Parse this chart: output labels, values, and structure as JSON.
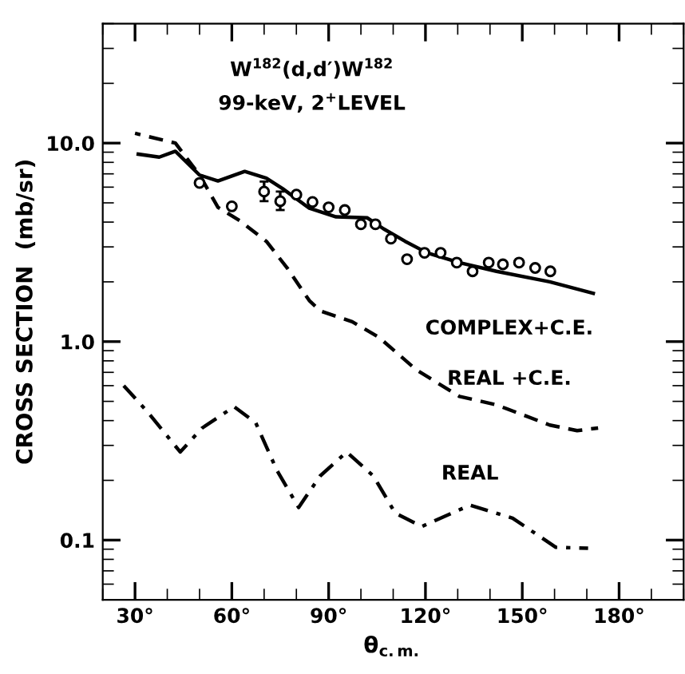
{
  "chart_data": {
    "type": "line",
    "xlabel": "θ$_{c.m.}$",
    "ylabel": "CROSS SECTION  (mb/sr)",
    "log": "y",
    "grid": false,
    "legend": false,
    "xlim": [
      20,
      200
    ],
    "xticks": [
      {
        "value": 30,
        "label": "30°"
      },
      {
        "value": 60,
        "label": "60°"
      },
      {
        "value": 90,
        "label": "90°"
      },
      {
        "value": 120,
        "label": "120°"
      },
      {
        "value": 150,
        "label": "150°"
      },
      {
        "value": 180,
        "label": "180°"
      }
    ],
    "ylim": [
      0.05,
      40
    ],
    "yticks": [
      {
        "value": 0.1,
        "label": "0.1"
      },
      {
        "value": 1,
        "label": "1.0"
      },
      {
        "value": 10,
        "label": "10.0"
      }
    ],
    "annotations": [
      "W$^{182}$(d,d′)W$^{182}$",
      "99-keV, 2$^{+}$LEVEL"
    ],
    "series": [
      {
        "name": "COMPLEX+C.E.",
        "line_style": "solid",
        "color": "#000000",
        "x": [
          31,
          37.5,
          42.5,
          50,
          55.7,
          64,
          70.7,
          75.7,
          84,
          92.3,
          102,
          107,
          113.7,
          120.5,
          130.5,
          142,
          158.5,
          172
        ],
        "values": [
          8.8,
          8.5,
          9.1,
          6.9,
          6.45,
          7.2,
          6.65,
          5.9,
          4.7,
          4.25,
          4.2,
          3.7,
          3.2,
          2.8,
          2.5,
          2.26,
          2.0,
          1.75
        ]
      },
      {
        "name": "REAL +C.E.",
        "line_style": "dashed",
        "color": "#000000",
        "x": [
          30,
          42.5,
          50,
          55.7,
          62.4,
          70.7,
          77.3,
          84,
          87.3,
          97.3,
          105.6,
          117.2,
          130.5,
          142,
          158.5,
          167,
          173.5
        ],
        "values": [
          11.2,
          10,
          6.9,
          4.75,
          4.07,
          3.2,
          2.33,
          1.61,
          1.43,
          1.26,
          1.05,
          0.72,
          0.53,
          0.48,
          0.38,
          0.356,
          0.367
        ]
      },
      {
        "name": "REAL",
        "line_style": "dashdot",
        "color": "#000000",
        "x": [
          26.5,
          34,
          44,
          50.8,
          60.7,
          67.4,
          74,
          80.7,
          87.3,
          95.6,
          103.9,
          110.6,
          118.8,
          133.8,
          147,
          160.4,
          170.4
        ],
        "values": [
          0.6,
          0.44,
          0.278,
          0.367,
          0.47,
          0.39,
          0.224,
          0.146,
          0.21,
          0.278,
          0.21,
          0.137,
          0.117,
          0.15,
          0.129,
          0.092,
          0.091
        ]
      },
      {
        "type": "scatter",
        "marker": "circle",
        "color": "#000000",
        "x": [
          50,
          60,
          70,
          75,
          80,
          85,
          90,
          95,
          100,
          104.5,
          109.3,
          114.3,
          119.7,
          124.7,
          129.7,
          134.6,
          139.6,
          144,
          149,
          154,
          158.7
        ],
        "values": [
          6.3,
          4.8,
          5.7,
          5.1,
          5.5,
          5.05,
          4.75,
          4.6,
          3.9,
          3.9,
          3.3,
          2.6,
          2.8,
          2.8,
          2.5,
          2.26,
          2.5,
          2.45,
          2.5,
          2.35,
          2.26
        ],
        "errors": [
          null,
          null,
          [
            5.1,
            6.4
          ],
          [
            4.6,
            5.7
          ],
          null,
          null,
          null,
          null,
          null,
          null,
          null,
          null,
          null,
          null,
          null,
          null,
          null,
          null,
          null,
          null,
          null
        ]
      }
    ]
  }
}
